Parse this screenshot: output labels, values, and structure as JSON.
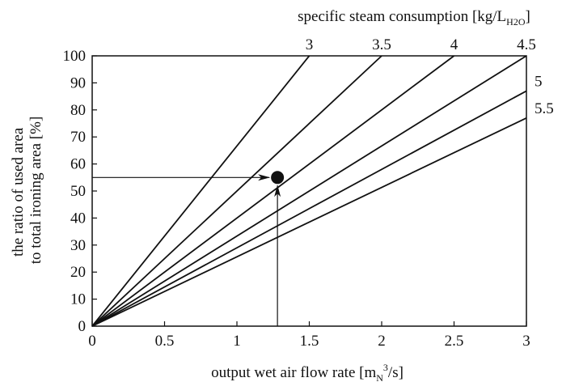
{
  "chart_data": {
    "type": "line",
    "xlabel": "output wet air flow rate [m",
    "xlabel_sub": "N",
    "xlabel_sup": "3",
    "xlabel_tail": "/s]",
    "ylabel_line1": "the ratio of used area",
    "ylabel_line2": "to total ironing area [%]",
    "top_axis_label": "specific steam consumption [kg/L",
    "top_axis_label_sub": "H2O",
    "top_axis_label_tail": "]",
    "xlim": [
      0,
      3
    ],
    "ylim": [
      0,
      100
    ],
    "x_ticks": [
      "0",
      "0.5",
      "1",
      "1.5",
      "2",
      "2.5",
      "3"
    ],
    "y_ticks": [
      "0",
      "10",
      "20",
      "30",
      "40",
      "50",
      "60",
      "70",
      "80",
      "90",
      "100"
    ],
    "series": [
      {
        "name": "3",
        "points": [
          [
            0,
            0
          ],
          [
            1.5,
            100
          ]
        ]
      },
      {
        "name": "3.5",
        "points": [
          [
            0,
            0
          ],
          [
            2.0,
            100
          ]
        ]
      },
      {
        "name": "4",
        "points": [
          [
            0,
            0
          ],
          [
            2.5,
            100
          ]
        ]
      },
      {
        "name": "4.5",
        "points": [
          [
            0,
            0
          ],
          [
            3.0,
            100
          ]
        ]
      },
      {
        "name": "5",
        "points": [
          [
            0,
            0
          ],
          [
            3.0,
            87
          ]
        ]
      },
      {
        "name": "5.5",
        "points": [
          [
            0,
            0
          ],
          [
            3.0,
            77
          ]
        ]
      }
    ],
    "marker": {
      "x": 1.28,
      "y": 55
    },
    "grid": false,
    "line_color": "#111111"
  }
}
